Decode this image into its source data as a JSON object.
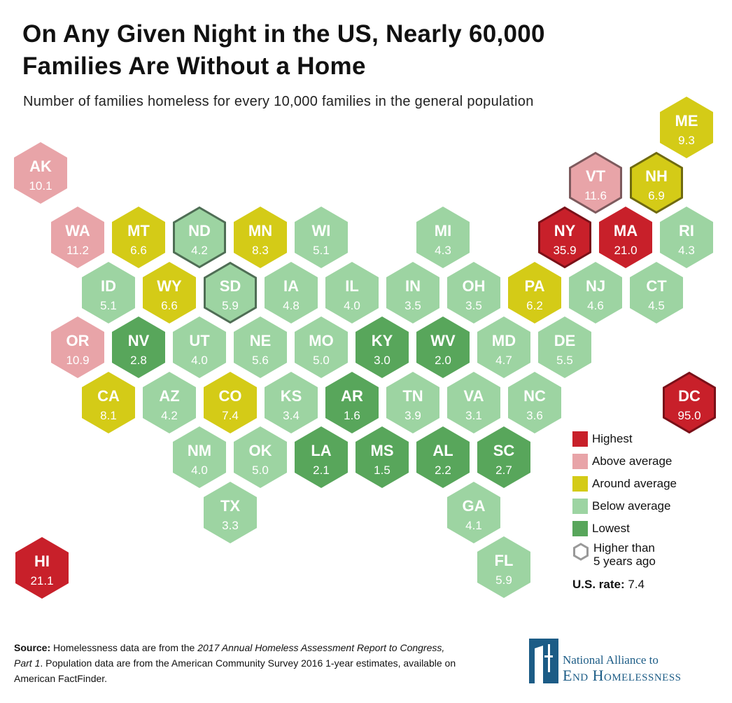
{
  "title_line1": "On Any Given Night in the US, Nearly 60,000",
  "title_line2": "Families Are Without a Home",
  "subtitle": "Number of families homeless for every 10,000 families in the general population",
  "colors": {
    "highest": "#c8202a",
    "above": "#e8a4a8",
    "around": "#d4cb17",
    "below": "#9dd4a2",
    "lowest": "#58a65b"
  },
  "outline_colors": {
    "highest": "#7a1018",
    "above": "#7d5a5d",
    "around": "#6f6a10",
    "below": "#4f6e55",
    "lowest": "#2f5f32"
  },
  "states": [
    {
      "code": "AK",
      "value": "10.1",
      "category": "above",
      "higher_than_5y": false
    },
    {
      "code": "ME",
      "value": "9.3",
      "category": "around",
      "higher_than_5y": false
    },
    {
      "code": "VT",
      "value": "11.6",
      "category": "above",
      "higher_than_5y": true
    },
    {
      "code": "NH",
      "value": "6.9",
      "category": "around",
      "higher_than_5y": true
    },
    {
      "code": "WA",
      "value": "11.2",
      "category": "above",
      "higher_than_5y": false
    },
    {
      "code": "MT",
      "value": "6.6",
      "category": "around",
      "higher_than_5y": false
    },
    {
      "code": "ND",
      "value": "4.2",
      "category": "below",
      "higher_than_5y": true
    },
    {
      "code": "MN",
      "value": "8.3",
      "category": "around",
      "higher_than_5y": false
    },
    {
      "code": "WI",
      "value": "5.1",
      "category": "below",
      "higher_than_5y": false
    },
    {
      "code": "MI",
      "value": "4.3",
      "category": "below",
      "higher_than_5y": false
    },
    {
      "code": "NY",
      "value": "35.9",
      "category": "highest",
      "higher_than_5y": true
    },
    {
      "code": "MA",
      "value": "21.0",
      "category": "highest",
      "higher_than_5y": false
    },
    {
      "code": "RI",
      "value": "4.3",
      "category": "below",
      "higher_than_5y": false
    },
    {
      "code": "ID",
      "value": "5.1",
      "category": "below",
      "higher_than_5y": false
    },
    {
      "code": "WY",
      "value": "6.6",
      "category": "around",
      "higher_than_5y": false
    },
    {
      "code": "SD",
      "value": "5.9",
      "category": "below",
      "higher_than_5y": true
    },
    {
      "code": "IA",
      "value": "4.8",
      "category": "below",
      "higher_than_5y": false
    },
    {
      "code": "IL",
      "value": "4.0",
      "category": "below",
      "higher_than_5y": false
    },
    {
      "code": "IN",
      "value": "3.5",
      "category": "below",
      "higher_than_5y": false
    },
    {
      "code": "OH",
      "value": "3.5",
      "category": "below",
      "higher_than_5y": false
    },
    {
      "code": "PA",
      "value": "6.2",
      "category": "around",
      "higher_than_5y": false
    },
    {
      "code": "NJ",
      "value": "4.6",
      "category": "below",
      "higher_than_5y": false
    },
    {
      "code": "CT",
      "value": "4.5",
      "category": "below",
      "higher_than_5y": false
    },
    {
      "code": "OR",
      "value": "10.9",
      "category": "above",
      "higher_than_5y": false
    },
    {
      "code": "NV",
      "value": "2.8",
      "category": "lowest",
      "higher_than_5y": false
    },
    {
      "code": "UT",
      "value": "4.0",
      "category": "below",
      "higher_than_5y": false
    },
    {
      "code": "NE",
      "value": "5.6",
      "category": "below",
      "higher_than_5y": false
    },
    {
      "code": "MO",
      "value": "5.0",
      "category": "below",
      "higher_than_5y": false
    },
    {
      "code": "KY",
      "value": "3.0",
      "category": "lowest",
      "higher_than_5y": false
    },
    {
      "code": "WV",
      "value": "2.0",
      "category": "lowest",
      "higher_than_5y": false
    },
    {
      "code": "MD",
      "value": "4.7",
      "category": "below",
      "higher_than_5y": false
    },
    {
      "code": "DE",
      "value": "5.5",
      "category": "below",
      "higher_than_5y": false
    },
    {
      "code": "CA",
      "value": "8.1",
      "category": "around",
      "higher_than_5y": false
    },
    {
      "code": "AZ",
      "value": "4.2",
      "category": "below",
      "higher_than_5y": false
    },
    {
      "code": "CO",
      "value": "7.4",
      "category": "around",
      "higher_than_5y": false
    },
    {
      "code": "KS",
      "value": "3.4",
      "category": "below",
      "higher_than_5y": false
    },
    {
      "code": "AR",
      "value": "1.6",
      "category": "lowest",
      "higher_than_5y": false
    },
    {
      "code": "TN",
      "value": "3.9",
      "category": "below",
      "higher_than_5y": false
    },
    {
      "code": "VA",
      "value": "3.1",
      "category": "below",
      "higher_than_5y": false
    },
    {
      "code": "NC",
      "value": "3.6",
      "category": "below",
      "higher_than_5y": false
    },
    {
      "code": "DC",
      "value": "95.0",
      "category": "highest",
      "higher_than_5y": true
    },
    {
      "code": "NM",
      "value": "4.0",
      "category": "below",
      "higher_than_5y": false
    },
    {
      "code": "OK",
      "value": "5.0",
      "category": "below",
      "higher_than_5y": false
    },
    {
      "code": "LA",
      "value": "2.1",
      "category": "lowest",
      "higher_than_5y": false
    },
    {
      "code": "MS",
      "value": "1.5",
      "category": "lowest",
      "higher_than_5y": false
    },
    {
      "code": "AL",
      "value": "2.2",
      "category": "lowest",
      "higher_than_5y": false
    },
    {
      "code": "SC",
      "value": "2.7",
      "category": "lowest",
      "higher_than_5y": false
    },
    {
      "code": "TX",
      "value": "3.3",
      "category": "below",
      "higher_than_5y": false
    },
    {
      "code": "GA",
      "value": "4.1",
      "category": "below",
      "higher_than_5y": false
    },
    {
      "code": "HI",
      "value": "21.1",
      "category": "highest",
      "higher_than_5y": false
    },
    {
      "code": "FL",
      "value": "5.9",
      "category": "below",
      "higher_than_5y": false
    }
  ],
  "legend": {
    "highest": "Highest",
    "above": "Above average",
    "around": "Around average",
    "below": "Below average",
    "lowest": "Lowest",
    "outline_line1": "Higher than",
    "outline_line2": "5 years ago",
    "outline_color": "#999999",
    "rate_label": "U.S. rate:",
    "rate_value": "7.4"
  },
  "source": {
    "label": "Source:",
    "text1": " Homelessness data are from the ",
    "italic1": "2017 Annual Homeless Assessment Report to Congress, Part 1",
    "text2": ". Population data are from the American Community Survey 2016 1-year estimates, available on American FactFinder."
  },
  "logo": {
    "line1": "National Alliance to",
    "line2": "End Homelessness",
    "color": "#1c5c86"
  }
}
